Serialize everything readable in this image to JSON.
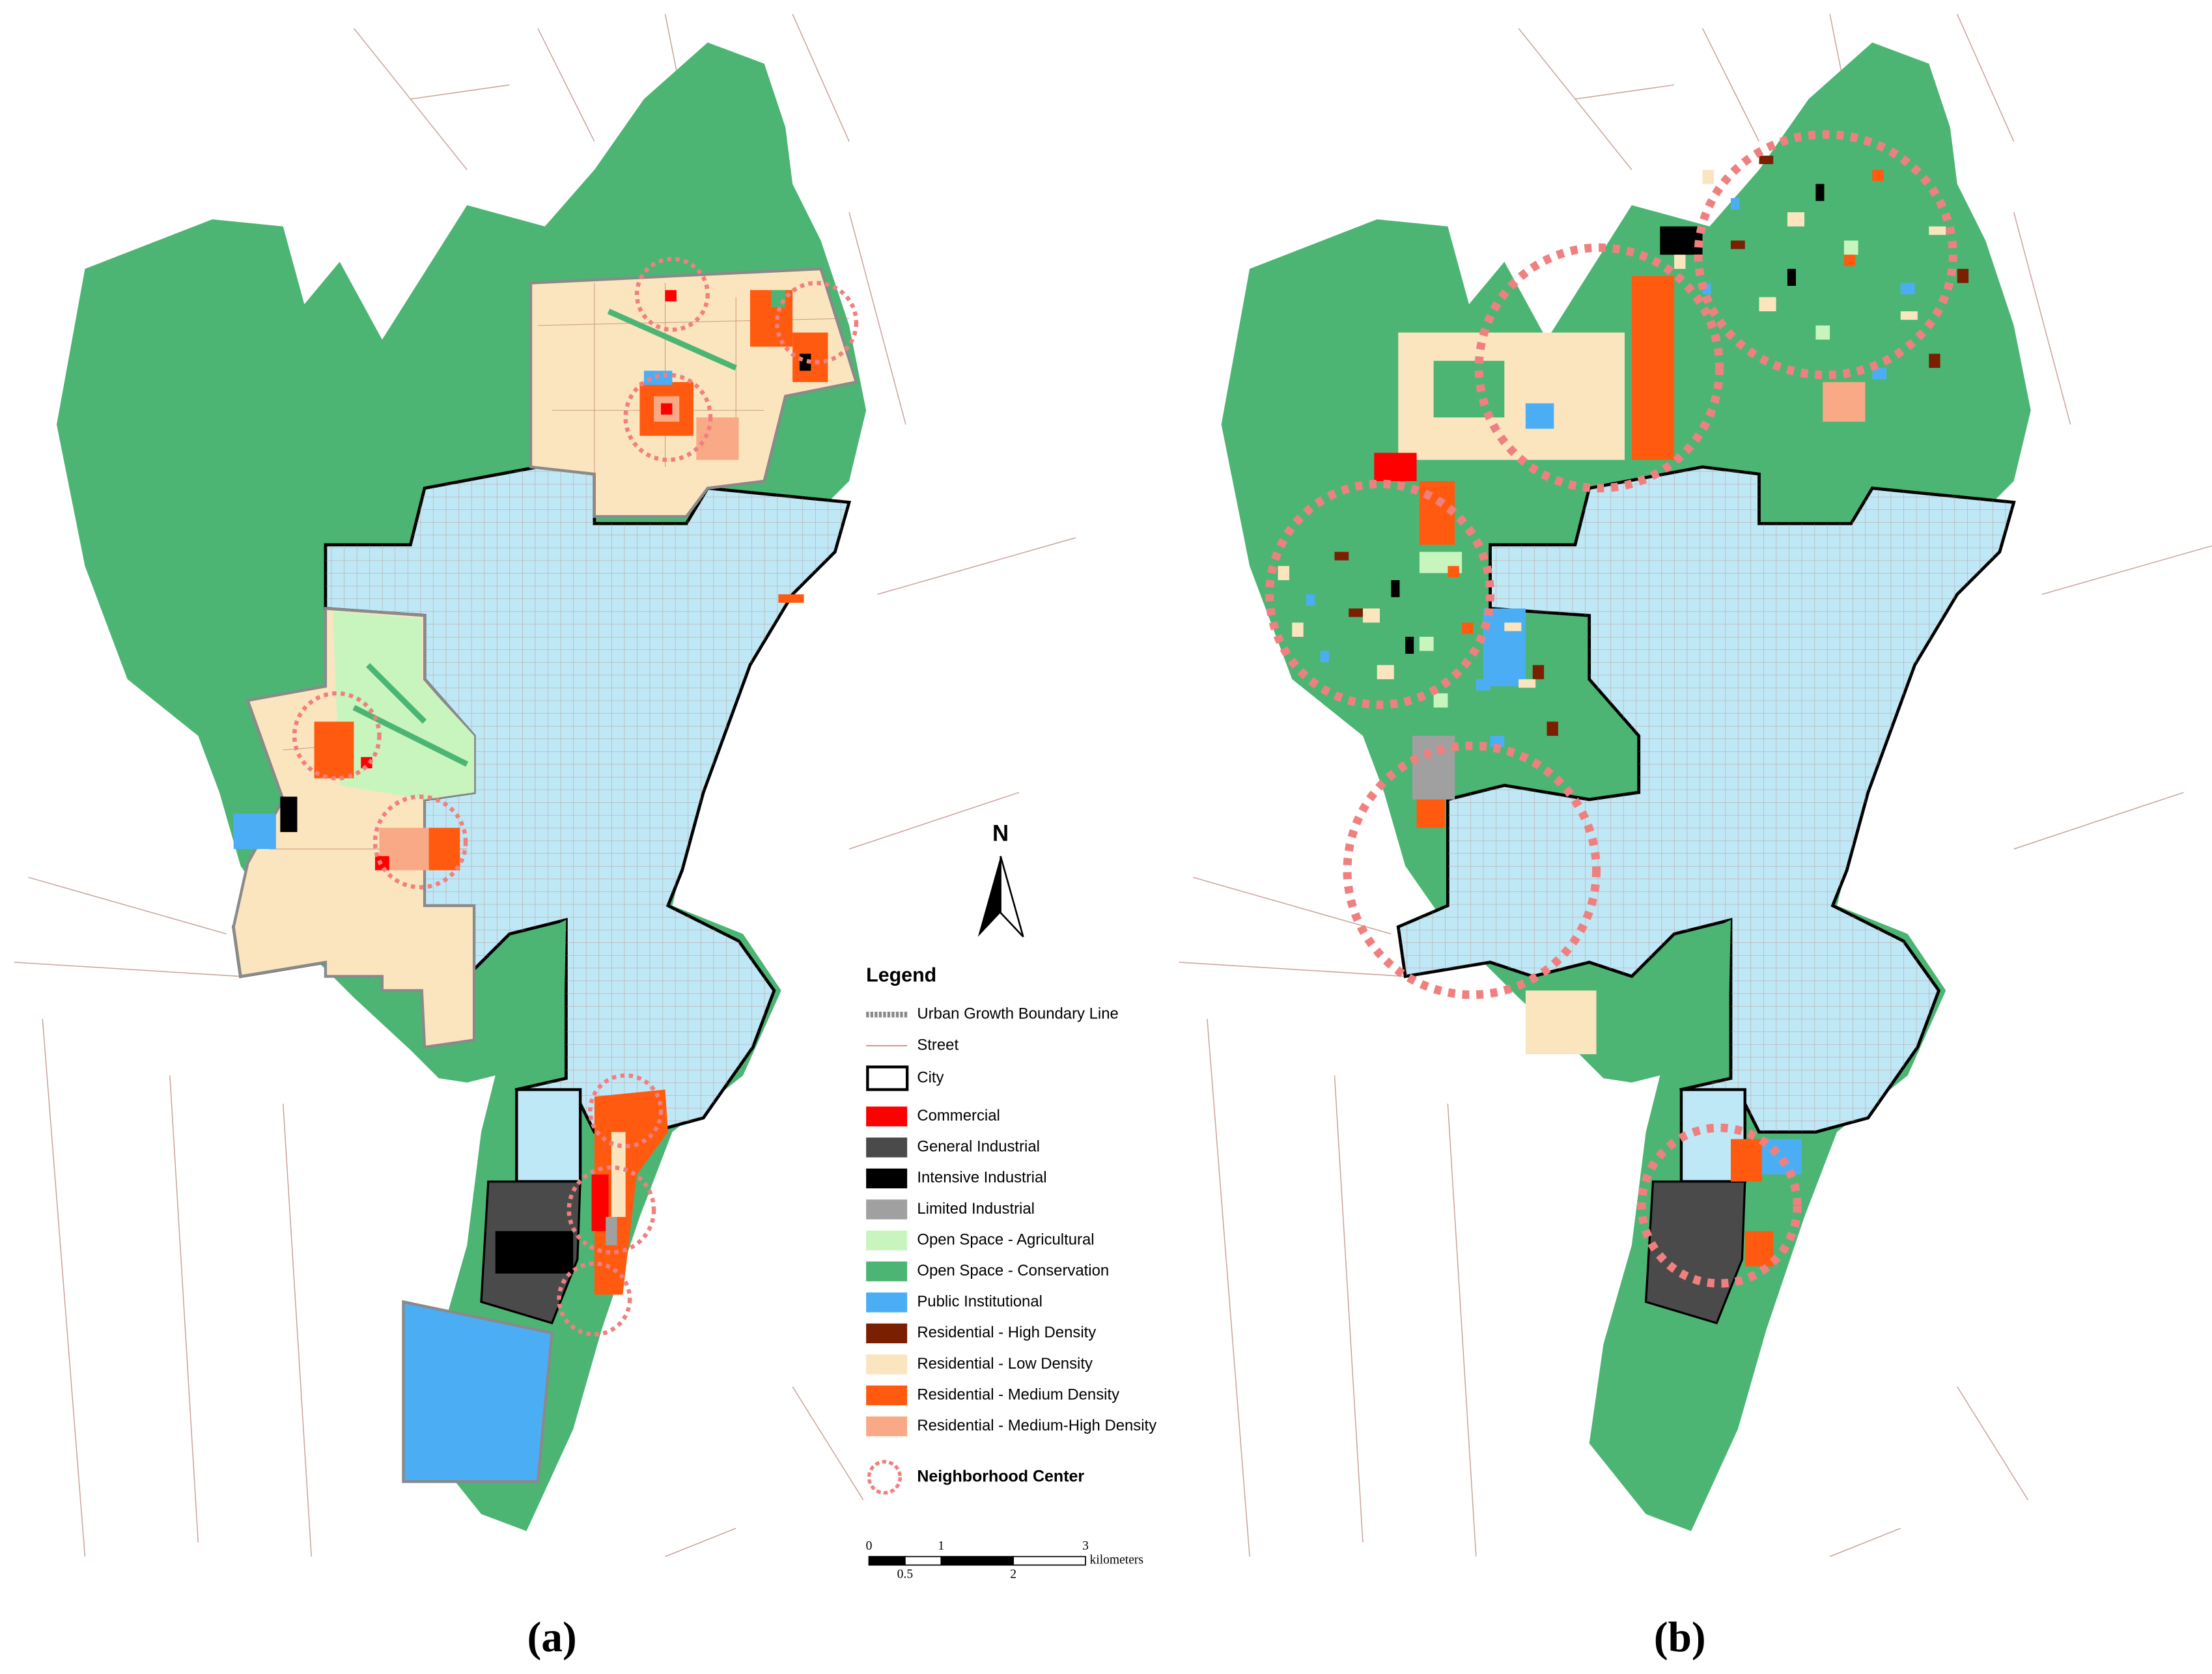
{
  "legend": {
    "title": "Legend",
    "boundary_line": {
      "label": "Urban Growth Boundary Line",
      "color": "#8a8a8a"
    },
    "street": {
      "label": "Street",
      "color": "#d49c8c"
    },
    "city": {
      "label": "City",
      "color": "#000000"
    },
    "land_use": [
      {
        "label": "Commercial",
        "color": "#ff0000"
      },
      {
        "label": "General Industrial",
        "color": "#4a4a4a"
      },
      {
        "label": "Intensive Industrial",
        "color": "#000000"
      },
      {
        "label": "Limited Industrial",
        "color": "#a0a0a0"
      },
      {
        "label": "Open Space - Agricultural",
        "color": "#c8f5be"
      },
      {
        "label": "Open Space - Conservation",
        "color": "#4cb574"
      },
      {
        "label": "Public Institutional",
        "color": "#4baef5"
      },
      {
        "label": "Residential - High Density",
        "color": "#7a2000"
      },
      {
        "label": "Residential - Low Density",
        "color": "#fbe5bf"
      },
      {
        "label": "Residential - Medium Density",
        "color": "#ff5a0f"
      },
      {
        "label": "Residential - Medium-High Density",
        "color": "#f9a985"
      }
    ],
    "neighborhood_center": {
      "label": "Neighborhood Center",
      "color": "#f08080"
    }
  },
  "north": "N",
  "scale_bar": {
    "ticks": [
      0,
      0.5,
      1,
      2,
      3
    ],
    "unit": "kilometers"
  },
  "panels": [
    {
      "label": "(a)"
    },
    {
      "label": "(b)"
    }
  ]
}
